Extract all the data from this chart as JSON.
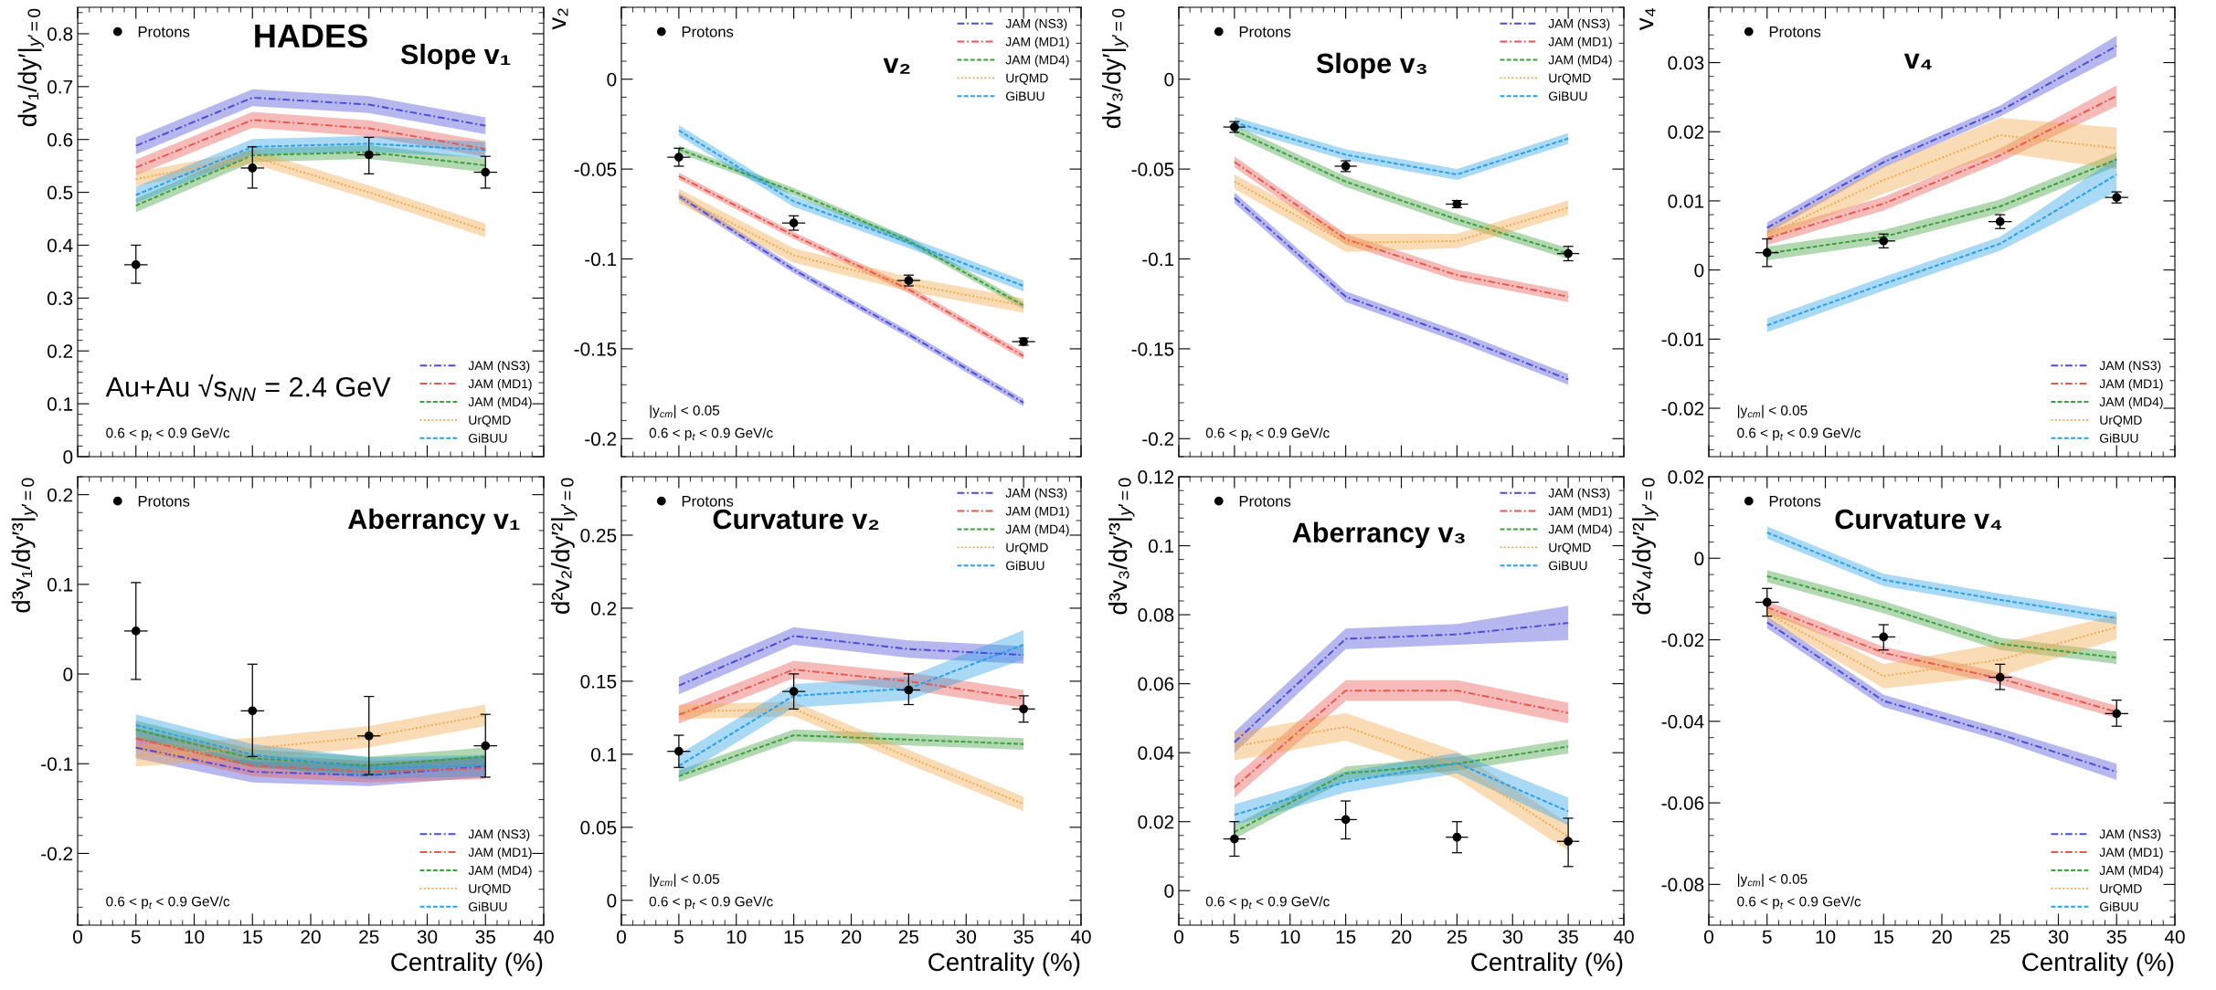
{
  "chart_data": [
    {
      "type": "line",
      "title": "Slope v₁",
      "ylabel": "dv₁/dy′|$_{y′=0}$",
      "x": [
        5,
        15,
        25,
        35
      ],
      "xlim": [
        0,
        40
      ],
      "xticks": [
        0,
        5,
        10,
        15,
        20,
        25,
        30,
        35,
        40
      ],
      "ylim": [
        0,
        0.85
      ],
      "yticks": [
        0,
        0.1,
        0.2,
        0.3,
        0.4,
        0.5,
        0.6,
        0.7,
        0.8
      ],
      "tick_labels": "y",
      "legend": "bottom right",
      "grid": false,
      "annotations": [
        "HADES",
        "Au+Au √s$_{NN}$ = 2.4 GeV",
        "0.6 < p$_{t}$ < 0.9 GeV/c"
      ],
      "series": [
        {
          "name": "JAM (NS3)",
          "color": "#4b4bd8",
          "line_style": "dashdot",
          "values": [
            0.588,
            0.679,
            0.666,
            0.626
          ],
          "lower": [
            0.572,
            0.663,
            0.65,
            0.61
          ],
          "upper": [
            0.604,
            0.695,
            0.682,
            0.642
          ]
        },
        {
          "name": "JAM (MD1)",
          "color": "#e8564e",
          "line_style": "dashdot",
          "values": [
            0.547,
            0.637,
            0.621,
            0.582
          ],
          "lower": [
            0.532,
            0.622,
            0.606,
            0.567
          ],
          "upper": [
            0.562,
            0.652,
            0.636,
            0.597
          ]
        },
        {
          "name": "JAM (MD4)",
          "color": "#3c9e3c",
          "line_style": "dashed",
          "values": [
            0.475,
            0.57,
            0.576,
            0.551
          ],
          "lower": [
            0.462,
            0.557,
            0.563,
            0.538
          ],
          "upper": [
            0.488,
            0.583,
            0.589,
            0.564
          ]
        },
        {
          "name": "UrQMD",
          "color": "#f0a848",
          "line_style": "dotted",
          "values": [
            0.525,
            0.567,
            0.5,
            0.428
          ],
          "lower": [
            0.512,
            0.554,
            0.487,
            0.415
          ],
          "upper": [
            0.538,
            0.58,
            0.513,
            0.441
          ]
        },
        {
          "name": "GiBUU",
          "color": "#2a9fe6",
          "line_style": "dashed",
          "values": [
            0.495,
            0.586,
            0.592,
            0.58
          ],
          "lower": [
            0.48,
            0.571,
            0.577,
            0.565
          ],
          "upper": [
            0.51,
            0.601,
            0.607,
            0.595
          ]
        },
        {
          "name": "Protons",
          "type": "scatter",
          "color": "#000000",
          "marker": "circle",
          "values": [
            0.363,
            0.546,
            0.571,
            0.538
          ],
          "errors": [
            [
              0.328,
              0.4
            ],
            [
              0.508,
              0.586
            ],
            [
              0.535,
              0.604
            ],
            [
              0.508,
              0.568
            ]
          ],
          "xerrors": [
            1,
            1,
            1,
            1
          ]
        }
      ]
    },
    {
      "type": "line",
      "title": "v₂",
      "ylabel": "v₂",
      "x": [
        5,
        15,
        25,
        35
      ],
      "xlim": [
        0,
        40
      ],
      "xticks": [
        0,
        5,
        10,
        15,
        20,
        25,
        30,
        35,
        40
      ],
      "ylim": [
        -0.21,
        0.04
      ],
      "yticks": [
        -0.2,
        -0.15,
        -0.1,
        -0.05,
        0
      ],
      "tick_labels": "y",
      "legend": "top right",
      "grid": false,
      "annotations": [
        "|y$_{cm}$| < 0.05",
        "0.6 < p$_{t}$ < 0.9 GeV/c"
      ],
      "series": [
        {
          "name": "JAM (NS3)",
          "type": "line",
          "color": "#4b4bd8",
          "line_style": "dashdot",
          "values": [
            -0.065,
            -0.106,
            -0.142,
            -0.18
          ],
          "lower": [
            -0.067,
            -0.108,
            -0.144,
            -0.182
          ],
          "upper": [
            -0.063,
            -0.104,
            -0.14,
            -0.178
          ]
        },
        {
          "name": "JAM (MD1)",
          "type": "line",
          "color": "#e8564e",
          "line_style": "dashdot",
          "values": [
            -0.054,
            -0.087,
            -0.117,
            -0.154
          ],
          "lower": [
            -0.056,
            -0.089,
            -0.119,
            -0.156
          ],
          "upper": [
            -0.052,
            -0.085,
            -0.115,
            -0.152
          ]
        },
        {
          "name": "JAM (MD4)",
          "type": "line",
          "color": "#3c9e3c",
          "line_style": "dashed",
          "values": [
            -0.039,
            -0.0625,
            -0.09,
            -0.126
          ],
          "lower": [
            -0.041,
            -0.0645,
            -0.092,
            -0.128
          ],
          "upper": [
            -0.037,
            -0.0605,
            -0.088,
            -0.124
          ]
        },
        {
          "name": "UrQMD",
          "type": "line",
          "color": "#f0a848",
          "line_style": "dotted",
          "values": [
            -0.065,
            -0.098,
            -0.114,
            -0.126
          ],
          "lower": [
            -0.069,
            -0.102,
            -0.118,
            -0.13
          ],
          "upper": [
            -0.061,
            -0.094,
            -0.11,
            -0.122
          ]
        },
        {
          "name": "GiBUU",
          "type": "line",
          "color": "#2a9fe6",
          "line_style": "dashed",
          "values": [
            -0.0285,
            -0.068,
            -0.091,
            -0.115
          ],
          "lower": [
            -0.0315,
            -0.071,
            -0.094,
            -0.118
          ],
          "upper": [
            -0.0255,
            -0.065,
            -0.088,
            -0.112
          ]
        },
        {
          "name": "Protons",
          "type": "scatter",
          "color": "#000000",
          "marker": "circle",
          "values": [
            -0.0434,
            -0.08,
            -0.112,
            -0.146
          ],
          "errors": [
            [
              -0.0484,
              -0.0384
            ],
            [
              -0.084,
              -0.076
            ],
            [
              -0.115,
              -0.109
            ],
            [
              -0.148,
              -0.144
            ]
          ],
          "xerrors": [
            1,
            1,
            1,
            1
          ]
        }
      ]
    },
    {
      "type": "line",
      "title": "Slope v₃",
      "ylabel": "dv₃/dy′|$_{y′=0}$",
      "x": [
        5,
        15,
        25,
        35
      ],
      "xlim": [
        0,
        40
      ],
      "xticks": [
        0,
        5,
        10,
        15,
        20,
        25,
        30,
        35,
        40
      ],
      "ylim": [
        -0.21,
        0.04
      ],
      "yticks": [
        -0.2,
        -0.15,
        -0.1,
        -0.05,
        0
      ],
      "tick_labels": "y",
      "legend": "top right",
      "grid": false,
      "annotations": [
        "0.6 < p$_{t}$ < 0.9 GeV/c"
      ],
      "series": [
        {
          "name": "JAM (NS3)",
          "type": "line",
          "color": "#4b4bd8",
          "line_style": "dashdot",
          "values": [
            -0.066,
            -0.121,
            -0.143,
            -0.167
          ],
          "lower": [
            -0.069,
            -0.124,
            -0.146,
            -0.17
          ],
          "upper": [
            -0.063,
            -0.118,
            -0.14,
            -0.164
          ]
        },
        {
          "name": "JAM (MD1)",
          "type": "line",
          "color": "#e8564e",
          "line_style": "dashdot",
          "values": [
            -0.046,
            -0.089,
            -0.109,
            -0.121
          ],
          "lower": [
            -0.049,
            -0.092,
            -0.112,
            -0.124
          ],
          "upper": [
            -0.043,
            -0.086,
            -0.106,
            -0.118
          ]
        },
        {
          "name": "JAM (MD4)",
          "type": "line",
          "color": "#3c9e3c",
          "line_style": "dashed",
          "values": [
            -0.0285,
            -0.057,
            -0.078,
            -0.097
          ],
          "lower": [
            -0.0315,
            -0.06,
            -0.081,
            -0.1
          ],
          "upper": [
            -0.0255,
            -0.054,
            -0.075,
            -0.094
          ]
        },
        {
          "name": "UrQMD",
          "type": "line",
          "color": "#f0a848",
          "line_style": "dotted",
          "values": [
            -0.057,
            -0.091,
            -0.09,
            -0.0715
          ],
          "lower": [
            -0.061,
            -0.096,
            -0.094,
            -0.0755
          ],
          "upper": [
            -0.053,
            -0.086,
            -0.086,
            -0.0675
          ]
        },
        {
          "name": "GiBUU",
          "type": "line",
          "color": "#2a9fe6",
          "line_style": "dashed",
          "values": [
            -0.024,
            -0.042,
            -0.053,
            -0.033
          ],
          "lower": [
            -0.027,
            -0.045,
            -0.056,
            -0.036
          ],
          "upper": [
            -0.021,
            -0.039,
            -0.05,
            -0.03
          ]
        },
        {
          "name": "Protons",
          "type": "scatter",
          "color": "#000000",
          "marker": "circle",
          "values": [
            -0.0266,
            -0.0484,
            -0.0695,
            -0.097
          ],
          "errors": [
            [
              -0.0296,
              -0.0236
            ],
            [
              -0.0514,
              -0.0454
            ],
            [
              -0.0715,
              -0.0675
            ],
            [
              -0.101,
              -0.093
            ]
          ],
          "xerrors": [
            1,
            1,
            1,
            1
          ]
        }
      ]
    },
    {
      "type": "line",
      "title": "v₄",
      "ylabel": "v₄",
      "x": [
        5,
        15,
        25,
        35
      ],
      "xlim": [
        0,
        40
      ],
      "xticks": [
        0,
        5,
        10,
        15,
        20,
        25,
        30,
        35,
        40
      ],
      "ylim": [
        -0.027,
        0.038
      ],
      "yticks": [
        -0.02,
        -0.01,
        0,
        0.01,
        0.02,
        0.03
      ],
      "tick_labels": "y",
      "legend": "bottom right",
      "grid": false,
      "annotations": [
        "|y$_{cm}$| < 0.05",
        "0.6 < p$_{t}$ < 0.9 GeV/c"
      ],
      "series": [
        {
          "name": "JAM (NS3)",
          "type": "line",
          "color": "#4b4bd8",
          "line_style": "dashdot",
          "values": [
            0.0061,
            0.0156,
            0.023,
            0.0324
          ],
          "lower": [
            0.0053,
            0.0148,
            0.0222,
            0.0309
          ],
          "upper": [
            0.0069,
            0.0164,
            0.0238,
            0.0339
          ]
        },
        {
          "name": "JAM (MD1)",
          "type": "line",
          "color": "#e8564e",
          "line_style": "dashdot",
          "values": [
            0.0046,
            0.0096,
            0.0166,
            0.0252
          ],
          "lower": [
            0.0036,
            0.0086,
            0.0156,
            0.0237
          ],
          "upper": [
            0.0056,
            0.0106,
            0.0176,
            0.0267
          ]
        },
        {
          "name": "JAM (MD4)",
          "type": "line",
          "color": "#3c9e3c",
          "line_style": "dashed",
          "values": [
            0.0024,
            0.0048,
            0.0092,
            0.016
          ],
          "lower": [
            0.0014,
            0.0038,
            0.0082,
            0.015
          ],
          "upper": [
            0.0034,
            0.0058,
            0.0102,
            0.017
          ]
        },
        {
          "name": "UrQMD",
          "type": "line",
          "color": "#f0a848",
          "line_style": "dotted",
          "values": [
            0.0051,
            0.013,
            0.0195,
            0.0176
          ],
          "lower": [
            0.0043,
            0.011,
            0.017,
            0.0146
          ],
          "upper": [
            0.0059,
            0.015,
            0.022,
            0.0206
          ]
        },
        {
          "name": "GiBUU",
          "type": "line",
          "color": "#2a9fe6",
          "line_style": "dashed",
          "values": [
            -0.008,
            -0.002,
            0.0038,
            0.0138
          ],
          "lower": [
            -0.009,
            -0.003,
            0.0028,
            0.0113
          ],
          "upper": [
            -0.007,
            -0.001,
            0.0048,
            0.0163
          ]
        },
        {
          "name": "Protons",
          "type": "scatter",
          "color": "#000000",
          "marker": "circle",
          "values": [
            0.0025,
            0.0042,
            0.007,
            0.0105
          ],
          "errors": [
            [
              0.0005,
              0.0045
            ],
            [
              0.0032,
              0.0052
            ],
            [
              0.006,
              0.008
            ],
            [
              0.0097,
              0.0113
            ]
          ],
          "xerrors": [
            1,
            1,
            1,
            1
          ]
        }
      ]
    },
    {
      "type": "line",
      "title": "Aberrancy v₁",
      "ylabel": "d³v₁/dy′³|$_{y′=0}$",
      "xlabel": "Centrality (%)",
      "x": [
        5,
        15,
        25,
        35
      ],
      "xlim": [
        0,
        40
      ],
      "xticks": [
        0,
        5,
        10,
        15,
        20,
        25,
        30,
        35,
        40
      ],
      "ylim": [
        -0.28,
        0.22
      ],
      "yticks": [
        -0.2,
        -0.1,
        0,
        0.1,
        0.2
      ],
      "legend": "bottom right",
      "grid": false,
      "annotations": [
        "0.6 < p$_{t}$ < 0.9 GeV/c"
      ],
      "series": [
        {
          "name": "JAM (NS3)",
          "type": "line",
          "color": "#4b4bd8",
          "line_style": "dashdot",
          "values": [
            -0.082,
            -0.109,
            -0.113,
            -0.103
          ],
          "lower": [
            -0.094,
            -0.121,
            -0.125,
            -0.115
          ],
          "upper": [
            -0.07,
            -0.097,
            -0.101,
            -0.091
          ]
        },
        {
          "name": "JAM (MD1)",
          "type": "line",
          "color": "#e8564e",
          "line_style": "dashdot",
          "values": [
            -0.072,
            -0.102,
            -0.109,
            -0.105
          ],
          "lower": [
            -0.084,
            -0.114,
            -0.121,
            -0.117
          ],
          "upper": [
            -0.06,
            -0.09,
            -0.097,
            -0.093
          ]
        },
        {
          "name": "JAM (MD4)",
          "type": "line",
          "color": "#3c9e3c",
          "line_style": "dashed",
          "values": [
            -0.062,
            -0.094,
            -0.102,
            -0.092
          ],
          "lower": [
            -0.072,
            -0.104,
            -0.112,
            -0.102
          ],
          "upper": [
            -0.052,
            -0.084,
            -0.092,
            -0.082
          ]
        },
        {
          "name": "UrQMD",
          "type": "line",
          "color": "#f0a848",
          "line_style": "dotted",
          "values": [
            -0.091,
            -0.083,
            -0.07,
            -0.046
          ],
          "lower": [
            -0.103,
            -0.095,
            -0.082,
            -0.058
          ],
          "upper": [
            -0.079,
            -0.071,
            -0.058,
            -0.034
          ]
        },
        {
          "name": "GiBUU",
          "type": "line",
          "color": "#2a9fe6",
          "line_style": "dashed",
          "values": [
            -0.057,
            -0.09,
            -0.105,
            -0.102
          ],
          "lower": [
            -0.069,
            -0.102,
            -0.117,
            -0.114
          ],
          "upper": [
            -0.045,
            -0.078,
            -0.093,
            -0.09
          ]
        },
        {
          "name": "Protons",
          "type": "scatter",
          "color": "#000000",
          "marker": "circle",
          "values": [
            0.048,
            -0.041,
            -0.069,
            -0.08
          ],
          "errors": [
            [
              -0.006,
              0.102
            ],
            [
              -0.092,
              0.011
            ],
            [
              -0.112,
              -0.025
            ],
            [
              -0.115,
              -0.045
            ]
          ],
          "xerrors": [
            1,
            1,
            1,
            1
          ]
        }
      ]
    },
    {
      "type": "line",
      "title": "Curvature v₂",
      "ylabel": "d²v₂/dy′²|$_{y′=0}$",
      "xlabel": "Centrality (%)",
      "x": [
        5,
        15,
        25,
        35
      ],
      "xlim": [
        0,
        40
      ],
      "xticks": [
        0,
        5,
        10,
        15,
        20,
        25,
        30,
        35,
        40
      ],
      "ylim": [
        -0.017,
        0.29
      ],
      "yticks": [
        0,
        0.05,
        0.1,
        0.15,
        0.2,
        0.25
      ],
      "legend": "top right",
      "grid": false,
      "annotations": [
        "|y$_{cm}$| < 0.05",
        "0.6 < p$_{t}$ < 0.9 GeV/c"
      ],
      "series": [
        {
          "name": "JAM (NS3)",
          "type": "line",
          "color": "#4b4bd8",
          "line_style": "dashdot",
          "values": [
            0.147,
            0.181,
            0.172,
            0.168
          ],
          "lower": [
            0.141,
            0.175,
            0.166,
            0.162
          ],
          "upper": [
            0.153,
            0.187,
            0.178,
            0.174
          ]
        },
        {
          "name": "JAM (MD1)",
          "type": "line",
          "color": "#e8564e",
          "line_style": "dashdot",
          "values": [
            0.127,
            0.158,
            0.15,
            0.138
          ],
          "lower": [
            0.121,
            0.152,
            0.144,
            0.132
          ],
          "upper": [
            0.133,
            0.164,
            0.156,
            0.144
          ]
        },
        {
          "name": "JAM (MD4)",
          "type": "line",
          "color": "#3c9e3c",
          "line_style": "dashed",
          "values": [
            0.085,
            0.113,
            0.11,
            0.107
          ],
          "lower": [
            0.081,
            0.109,
            0.106,
            0.103
          ],
          "upper": [
            0.089,
            0.117,
            0.114,
            0.111
          ]
        },
        {
          "name": "UrQMD",
          "type": "line",
          "color": "#f0a848",
          "line_style": "dotted",
          "values": [
            0.129,
            0.131,
            0.098,
            0.066
          ],
          "lower": [
            0.124,
            0.126,
            0.093,
            0.061
          ],
          "upper": [
            0.134,
            0.136,
            0.103,
            0.071
          ]
        },
        {
          "name": "GiBUU",
          "type": "line",
          "color": "#2a9fe6",
          "line_style": "dashed",
          "values": [
            0.092,
            0.14,
            0.145,
            0.175
          ],
          "lower": [
            0.084,
            0.132,
            0.137,
            0.165
          ],
          "upper": [
            0.1,
            0.148,
            0.153,
            0.185
          ]
        },
        {
          "name": "Protons",
          "type": "scatter",
          "color": "#000000",
          "marker": "circle",
          "values": [
            0.102,
            0.143,
            0.144,
            0.131
          ],
          "errors": [
            [
              0.091,
              0.113
            ],
            [
              0.131,
              0.155
            ],
            [
              0.134,
              0.155
            ],
            [
              0.122,
              0.14
            ]
          ],
          "xerrors": [
            1,
            1,
            1,
            1
          ]
        }
      ]
    },
    {
      "type": "line",
      "title": "Aberrancy v₃",
      "ylabel": "d³v₃/dy′³|$_{y′=0}$",
      "xlabel": "Centrality (%)",
      "x": [
        5,
        15,
        25,
        35
      ],
      "xlim": [
        0,
        40
      ],
      "xticks": [
        0,
        5,
        10,
        15,
        20,
        25,
        30,
        35,
        40
      ],
      "ylim": [
        -0.01,
        0.12
      ],
      "yticks": [
        0,
        0.02,
        0.04,
        0.06,
        0.08,
        0.1,
        0.12
      ],
      "legend": "top right",
      "grid": false,
      "annotations": [
        "0.6 < p$_{t}$ < 0.9 GeV/c"
      ],
      "series": [
        {
          "name": "JAM (NS3)",
          "type": "line",
          "color": "#4b4bd8",
          "line_style": "dashdot",
          "values": [
            0.043,
            0.073,
            0.0743,
            0.0776
          ],
          "lower": [
            0.04,
            0.07,
            0.0713,
            0.0726
          ],
          "upper": [
            0.046,
            0.076,
            0.0773,
            0.0826
          ]
        },
        {
          "name": "JAM (MD1)",
          "type": "line",
          "color": "#e8564e",
          "line_style": "dashdot",
          "values": [
            0.03,
            0.058,
            0.058,
            0.0515
          ],
          "lower": [
            0.027,
            0.055,
            0.055,
            0.0485
          ],
          "upper": [
            0.033,
            0.061,
            0.061,
            0.0545
          ]
        },
        {
          "name": "JAM (MD4)",
          "type": "line",
          "color": "#3c9e3c",
          "line_style": "dashed",
          "values": [
            0.017,
            0.034,
            0.0368,
            0.0418
          ],
          "lower": [
            0.015,
            0.032,
            0.0348,
            0.0398
          ],
          "upper": [
            0.019,
            0.036,
            0.0388,
            0.0438
          ]
        },
        {
          "name": "UrQMD",
          "type": "line",
          "color": "#f0a848",
          "line_style": "dotted",
          "values": [
            0.0418,
            0.0475,
            0.0364,
            0.0156
          ],
          "lower": [
            0.0378,
            0.0435,
            0.0324,
            0.0116
          ],
          "upper": [
            0.0458,
            0.0515,
            0.0404,
            0.0196
          ]
        },
        {
          "name": "GiBUU",
          "type": "line",
          "color": "#2a9fe6",
          "line_style": "dashed",
          "values": [
            0.022,
            0.0315,
            0.037,
            0.023
          ],
          "lower": [
            0.019,
            0.0285,
            0.034,
            0.019
          ],
          "upper": [
            0.025,
            0.0345,
            0.04,
            0.027
          ]
        },
        {
          "name": "Protons",
          "type": "scatter",
          "color": "#000000",
          "marker": "circle",
          "values": [
            0.015,
            0.0206,
            0.0155,
            0.0143
          ],
          "errors": [
            [
              0.01,
              0.02
            ],
            [
              0.015,
              0.026
            ],
            [
              0.011,
              0.02
            ],
            [
              0.007,
              0.021
            ]
          ],
          "xerrors": [
            1,
            1,
            1,
            1
          ]
        }
      ]
    },
    {
      "type": "line",
      "title": "Curvature v₄",
      "ylabel": "d²v₄/dy′²|$_{y′=0}$",
      "xlabel": "Centrality (%)",
      "x": [
        5,
        15,
        25,
        35
      ],
      "xlim": [
        0,
        40
      ],
      "xticks": [
        0,
        5,
        10,
        15,
        20,
        25,
        30,
        35,
        40
      ],
      "ylim": [
        -0.09,
        0.02
      ],
      "yticks": [
        -0.08,
        -0.06,
        -0.04,
        -0.02,
        0,
        0.02
      ],
      "legend": "bottom right",
      "grid": false,
      "annotations": [
        "|y$_{cm}$| < 0.05",
        "0.6 < p$_{t}$ < 0.9 GeV/c"
      ],
      "series": [
        {
          "name": "JAM (NS3)",
          "type": "line",
          "color": "#4b4bd8",
          "line_style": "dashdot",
          "values": [
            -0.0157,
            -0.035,
            -0.0432,
            -0.0524
          ],
          "lower": [
            -0.0172,
            -0.0365,
            -0.0447,
            -0.0544
          ],
          "upper": [
            -0.0142,
            -0.0335,
            -0.0417,
            -0.0504
          ]
        },
        {
          "name": "JAM (MD1)",
          "type": "line",
          "color": "#e8564e",
          "line_style": "dashdot",
          "values": [
            -0.012,
            -0.0232,
            -0.0295,
            -0.0377
          ],
          "lower": [
            -0.0135,
            -0.0247,
            -0.031,
            -0.0392
          ],
          "upper": [
            -0.0105,
            -0.0217,
            -0.028,
            -0.0362
          ]
        },
        {
          "name": "JAM (MD4)",
          "type": "line",
          "color": "#3c9e3c",
          "line_style": "dashed",
          "values": [
            -0.0044,
            -0.012,
            -0.021,
            -0.0244
          ],
          "lower": [
            -0.0059,
            -0.0135,
            -0.0225,
            -0.0259
          ],
          "upper": [
            -0.0029,
            -0.0105,
            -0.0195,
            -0.0229
          ]
        },
        {
          "name": "UrQMD",
          "type": "line",
          "color": "#f0a848",
          "line_style": "dotted",
          "values": [
            -0.0135,
            -0.0289,
            -0.0249,
            -0.0169
          ],
          "lower": [
            -0.015,
            -0.0319,
            -0.0289,
            -0.0199
          ],
          "upper": [
            -0.012,
            -0.0259,
            -0.0209,
            -0.0139
          ]
        },
        {
          "name": "GiBUU",
          "type": "line",
          "color": "#2a9fe6",
          "line_style": "dashed",
          "values": [
            0.0063,
            -0.0053,
            -0.0102,
            -0.0147
          ],
          "lower": [
            0.0048,
            -0.0068,
            -0.0117,
            -0.0162
          ],
          "upper": [
            0.0078,
            -0.0038,
            -0.0087,
            -0.0132
          ]
        },
        {
          "name": "Protons",
          "type": "scatter",
          "color": "#000000",
          "marker": "circle",
          "values": [
            -0.0108,
            -0.0193,
            -0.0292,
            -0.0381
          ],
          "errors": [
            [
              -0.0142,
              -0.0074
            ],
            [
              -0.0225,
              -0.0163
            ],
            [
              -0.0322,
              -0.026
            ],
            [
              -0.0412,
              -0.0348
            ]
          ],
          "xerrors": [
            1,
            1,
            1,
            1
          ]
        }
      ]
    }
  ]
}
